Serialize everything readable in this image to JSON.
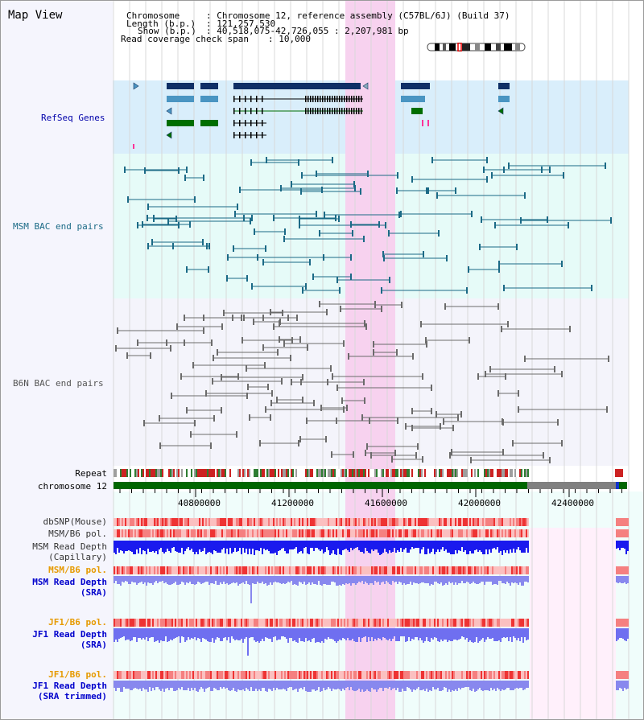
{
  "title": "Map View",
  "header": {
    "chromosome_label": "Chromosome",
    "chromosome_value": ": Chromosome 12, reference assembly (C57BL/6J) (Build 37)",
    "length_label": "Length (b.p.)",
    "length_value": ": 121,257,530",
    "show_label": "Show (b.p.)",
    "show_value": ": 40,518,075-42,726,055 : 2,207,981 bp",
    "coverage_label": "Read coverage check span",
    "coverage_value": ": 10,000"
  },
  "tracks": {
    "refseq": "RefSeq Genes",
    "msm_bac": "MSM BAC end pairs",
    "b6n_bac": "B6N BAC end pairs"
  },
  "ruler": {
    "repeat_label": "Repeat",
    "chromosome_label": "chromosome 12",
    "ticks": [
      "40800000",
      "41200000",
      "41600000",
      "42000000",
      "42400000"
    ]
  },
  "lower_tracks": [
    {
      "line1": "dbSNP(Mouse)",
      "line2": "",
      "color": "#333333"
    },
    {
      "line1": "MSM/B6 pol.",
      "line2": "",
      "color": "#333333"
    },
    {
      "line1": "MSM Read Depth",
      "line2": "(Capillary)",
      "color": "#333333"
    },
    {
      "line1": "MSM/B6 pol.",
      "line2": "",
      "color": "#e69a00"
    },
    {
      "line1": "MSM Read Depth",
      "line2": "(SRA)",
      "color": "#0000cc"
    },
    {
      "line1": "JF1/B6 pol.",
      "line2": "",
      "color": "#e69a00"
    },
    {
      "line1": "JF1 Read Depth",
      "line2": "(SRA)",
      "color": "#0000cc"
    },
    {
      "line1": "JF1/B6 pol.",
      "line2": "",
      "color": "#e69a00"
    },
    {
      "line1": "JF1 Read Depth",
      "line2": "(SRA trimmed)",
      "color": "#0000cc"
    }
  ],
  "colors": {
    "highlight": "#f7d2ef",
    "refseq_bg": "#d9eefb",
    "msm_bg": "#e6fbf8",
    "b6n_bg": "#f4f4fb",
    "gene_dark": "#0f2f66",
    "gene_mid": "#4a95c2",
    "gene_green": "#006e00",
    "msm_line": "#1b6a86",
    "b6n_line": "#6b6b6b",
    "chrom_green": "#006600",
    "chrom_gray": "#808080"
  }
}
